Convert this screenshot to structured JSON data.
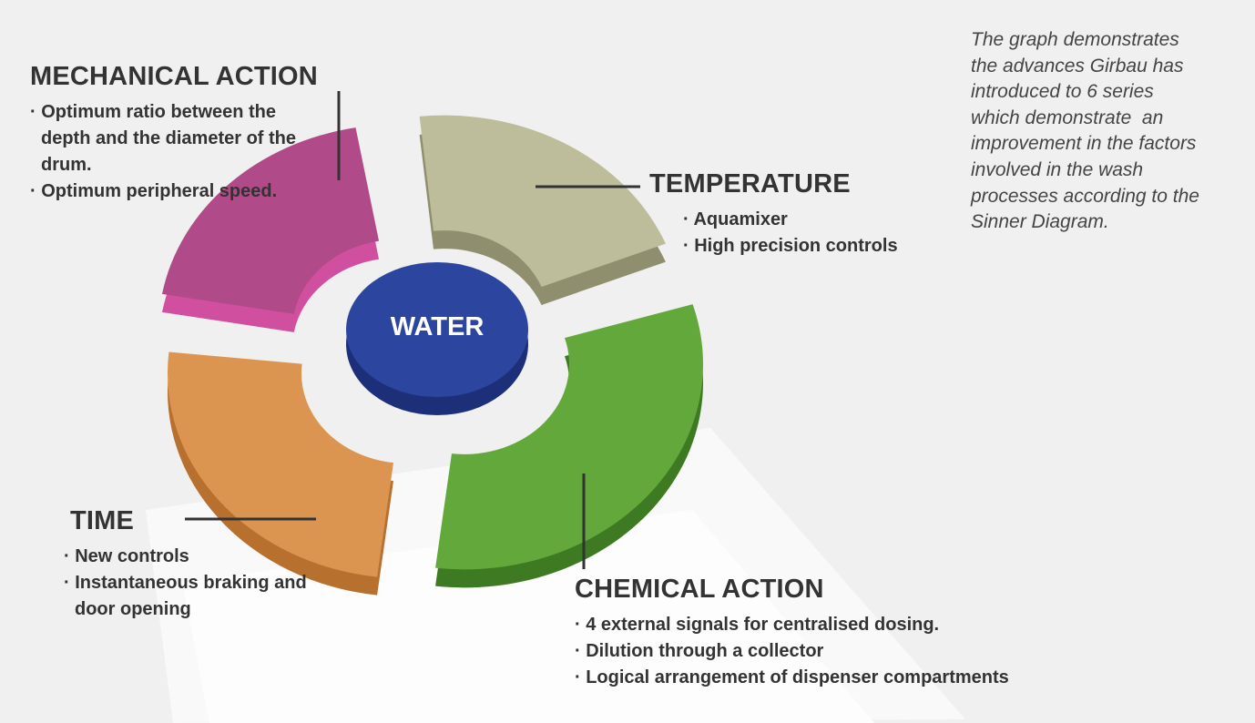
{
  "note": {
    "lines": [
      "The graph demonstrates",
      "the advances Girbau has",
      "introduced to 6 series",
      "which demonstrate  an",
      "improvement in the factors",
      "involved in the wash",
      "processes according to the",
      "Sinner Diagram."
    ]
  },
  "center": {
    "label": "WATER"
  },
  "sections": [
    {
      "title": "MECHANICAL ACTION",
      "items": [
        "· Optimum ratio between the depth and the diameter of the drum.",
        "· Optimum peripheral speed."
      ]
    },
    {
      "title": "TEMPERATURE",
      "items": [
        "· Aquamixer",
        "· High precision controls"
      ]
    },
    {
      "title": "TIME",
      "items": [
        "· New controls",
        "· Instantaneous braking and door opening"
      ]
    },
    {
      "title": "CHEMICAL ACTION",
      "items": [
        "· 4 external signals for centralised dosing.",
        "· Dilution through a collector",
        "· Logical arrangement of dispenser compartments"
      ]
    }
  ]
}
